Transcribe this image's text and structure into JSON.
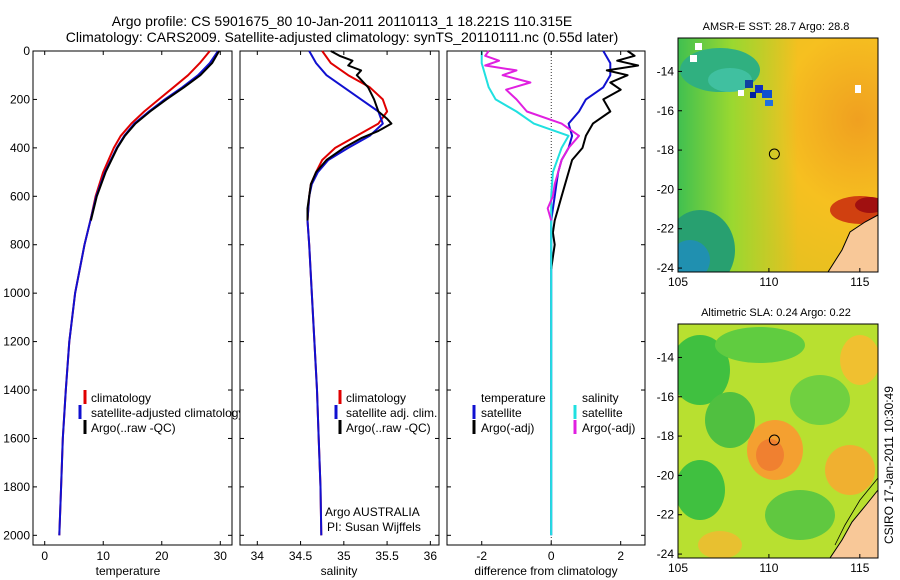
{
  "header": {
    "title_line1": "Argo profile: CS 5901675_80 10-Jan-2011 20110113_1 18.221S 110.315E",
    "title_line2": "Climatology: CARS2009. Satellite-adjusted climatology: synTS_20110111.nc (0.55d later)"
  },
  "colors": {
    "climatology": "#e00000",
    "satellite": "#1010d0",
    "argo": "#000000",
    "salinity_satellite": "#20e0e0",
    "salinity_argo": "#e020e0"
  },
  "depth_ticks": [
    "0",
    "200",
    "400",
    "600",
    "800",
    "1000",
    "1200",
    "1400",
    "1600",
    "1800",
    "2000"
  ],
  "chart_data": [
    {
      "type": "line",
      "name": "temperature-profile",
      "xlabel": "temperature",
      "xlim": [
        -2,
        32
      ],
      "ylim": [
        2040,
        0
      ],
      "xticks": [
        "0",
        "10",
        "20",
        "30"
      ],
      "series": [
        {
          "name": "climatology",
          "depth": [
            0,
            50,
            100,
            150,
            200,
            250,
            300,
            350,
            400,
            500,
            600,
            700,
            800,
            1000,
            1200,
            1400,
            1600,
            1800,
            2000
          ],
          "values": [
            28.2,
            26.5,
            24.5,
            22.0,
            19.5,
            17.0,
            14.8,
            13.0,
            11.8,
            10.0,
            8.7,
            7.8,
            6.8,
            5.2,
            4.2,
            3.6,
            3.1,
            2.8,
            2.5
          ]
        },
        {
          "name": "satellite-adjusted climatology",
          "depth": [
            0,
            50,
            100,
            150,
            200,
            250,
            300,
            350,
            400,
            500,
            600,
            700,
            800,
            1000,
            1200,
            1400,
            1600,
            1800,
            2000
          ],
          "values": [
            29.6,
            28.2,
            26.2,
            23.5,
            20.5,
            17.8,
            15.3,
            13.6,
            12.3,
            10.3,
            8.8,
            7.8,
            6.8,
            5.2,
            4.2,
            3.6,
            3.1,
            2.8,
            2.5
          ]
        },
        {
          "name": "Argo(..raw -QC)",
          "depth": [
            0,
            50,
            100,
            150,
            200,
            250,
            300,
            350,
            400,
            500,
            600,
            700
          ],
          "values": [
            29.8,
            28.6,
            26.6,
            23.8,
            20.8,
            18.0,
            15.5,
            13.7,
            12.4,
            10.4,
            8.9,
            7.9
          ]
        }
      ],
      "legend": [
        "climatology",
        "satellite-adjusted climatology",
        "Argo(..raw -QC)"
      ]
    },
    {
      "type": "line",
      "name": "salinity-profile",
      "xlabel": "salinity",
      "xlim": [
        33.8,
        36.1
      ],
      "ylim": [
        2040,
        0
      ],
      "xticks": [
        "34",
        "34.5",
        "35",
        "35.5",
        "36"
      ],
      "series": [
        {
          "name": "climatology",
          "depth": [
            0,
            50,
            100,
            150,
            200,
            250,
            300,
            350,
            400,
            450,
            500,
            550,
            600,
            700,
            800,
            1000,
            1200,
            1400,
            1600,
            1800,
            2000
          ],
          "values": [
            34.75,
            34.85,
            35.05,
            35.3,
            35.45,
            35.5,
            35.4,
            35.15,
            34.9,
            34.75,
            34.68,
            34.62,
            34.6,
            34.58,
            34.6,
            34.63,
            34.66,
            34.69,
            34.71,
            34.73,
            34.74
          ]
        },
        {
          "name": "satellite adj. clim.",
          "depth": [
            0,
            50,
            100,
            150,
            200,
            250,
            300,
            350,
            400,
            450,
            500,
            550,
            600,
            700,
            800,
            1000,
            1200,
            1400,
            1600,
            1800,
            2000
          ],
          "values": [
            34.6,
            34.68,
            34.8,
            35.0,
            35.2,
            35.4,
            35.45,
            35.3,
            35.05,
            34.82,
            34.7,
            34.63,
            34.6,
            34.58,
            34.6,
            34.63,
            34.66,
            34.69,
            34.71,
            34.73,
            34.74
          ]
        },
        {
          "name": "Argo(..raw -QC)",
          "depth": [
            0,
            20,
            40,
            60,
            80,
            100,
            150,
            200,
            250,
            280,
            300,
            330,
            360,
            400,
            450,
            500,
            550,
            600,
            650,
            700
          ],
          "values": [
            34.85,
            34.95,
            35.1,
            35.05,
            35.2,
            35.15,
            35.28,
            35.35,
            35.4,
            35.5,
            35.55,
            35.4,
            35.2,
            35.0,
            34.8,
            34.68,
            34.62,
            34.6,
            34.58,
            34.58
          ]
        }
      ],
      "legend": [
        "climatology",
        "satellite adj. clim.",
        "Argo(..raw -QC)"
      ],
      "annotations": [
        "Argo AUSTRALIA",
        "PI: Susan Wijffels"
      ]
    },
    {
      "type": "line",
      "name": "difference-profile",
      "xlabel": "difference from climatology",
      "xlim": [
        -3.0,
        2.7
      ],
      "ylim": [
        2040,
        0
      ],
      "xticks": [
        "-2",
        "0",
        "2"
      ],
      "series": [
        {
          "name": "temperature satellite",
          "depth": [
            0,
            50,
            100,
            150,
            200,
            250,
            300,
            350,
            400,
            450,
            500,
            550,
            600,
            700,
            800,
            1000,
            1500,
            2000
          ],
          "values": [
            1.5,
            1.7,
            1.7,
            1.5,
            1.0,
            0.8,
            0.5,
            0.6,
            0.5,
            0.3,
            0.2,
            0.15,
            0.1,
            0.0,
            0.0,
            0.0,
            0.0,
            0.0
          ]
        },
        {
          "name": "temperature Argo(-adj)",
          "depth": [
            0,
            20,
            40,
            60,
            80,
            100,
            130,
            160,
            200,
            250,
            300,
            350,
            400,
            450,
            500,
            550,
            600,
            650,
            700,
            750,
            800,
            850,
            900
          ],
          "values": [
            2.2,
            2.4,
            1.9,
            2.5,
            1.6,
            2.2,
            1.7,
            2.0,
            1.5,
            1.7,
            1.2,
            1.0,
            0.9,
            0.6,
            0.5,
            0.4,
            0.3,
            0.2,
            0.1,
            0.05,
            0.1,
            0.05,
            0.0
          ]
        },
        {
          "name": "salinity satellite",
          "depth": [
            0,
            50,
            100,
            150,
            200,
            250,
            300,
            350,
            400,
            500,
            600,
            700,
            800,
            1000,
            1500,
            2000
          ],
          "values": [
            -2.0,
            -2.0,
            -1.9,
            -1.8,
            -1.6,
            -1.0,
            -0.5,
            0.5,
            0.3,
            0.05,
            0.0,
            0.0,
            0.0,
            0.0,
            0.0,
            0.0
          ]
        },
        {
          "name": "salinity Argo(-adj)",
          "depth": [
            0,
            20,
            40,
            60,
            80,
            100,
            130,
            160,
            200,
            250,
            300,
            350,
            400,
            450,
            500,
            550,
            600,
            650,
            700
          ],
          "values": [
            -1.8,
            -1.9,
            -1.5,
            -1.9,
            -1.0,
            -1.4,
            -0.6,
            -1.3,
            -1.0,
            -0.7,
            0.3,
            0.8,
            0.5,
            0.3,
            0.2,
            0.1,
            0.05,
            -0.1,
            0.0
          ]
        }
      ],
      "legend": {
        "temperature_header": "temperature",
        "salinity_header": "salinity",
        "entries": [
          "satellite",
          "Argo(-adj)",
          "satellite",
          "Argo(-adj)"
        ]
      }
    },
    {
      "type": "heatmap",
      "name": "amsre-sst-map",
      "title": "AMSR-E SST: 28.7 Argo: 28.8",
      "xlim": [
        105,
        116
      ],
      "ylim": [
        -24.2,
        -12.3
      ],
      "xticks": [
        "105",
        "110",
        "115"
      ],
      "yticks": [
        "-14",
        "-16",
        "-18",
        "-20",
        "-22",
        "-24"
      ],
      "marker": {
        "lon": 110.3,
        "lat": -18.2
      }
    },
    {
      "type": "heatmap",
      "name": "altimetric-sla-map",
      "title": "Altimetric SLA: 0.24 Argo: 0.22",
      "xlim": [
        105,
        116
      ],
      "ylim": [
        -24.2,
        -12.3
      ],
      "xticks": [
        "105",
        "110",
        "115"
      ],
      "yticks": [
        "-14",
        "-16",
        "-18",
        "-20",
        "-22",
        "-24"
      ],
      "marker": {
        "lon": 110.3,
        "lat": -18.2
      }
    }
  ],
  "stamp": "CSIRO 17-Jan-2011 10:30:49"
}
